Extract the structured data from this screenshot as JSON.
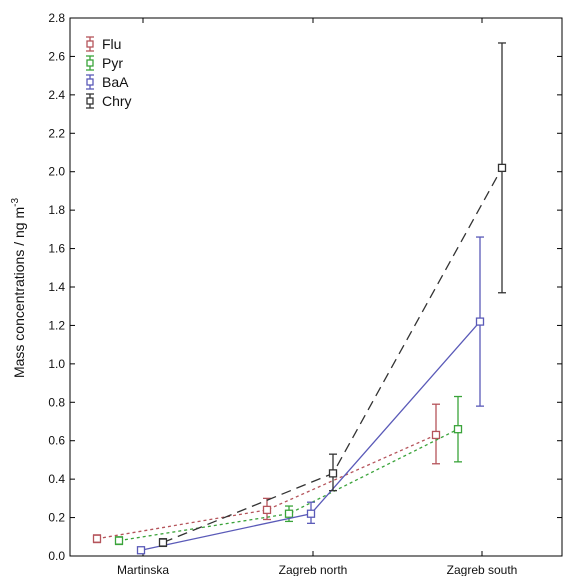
{
  "chart_data": {
    "type": "line",
    "title": "",
    "xlabel": "",
    "ylabel_main": "Mass concentrations / ng m",
    "ylabel_sup": "-3",
    "categories": [
      "Martinska",
      "Zagreb north",
      "Zagreb south"
    ],
    "ylim": [
      0.0,
      2.8
    ],
    "yticks": [
      "0.0",
      "0.2",
      "0.4",
      "0.6",
      "0.8",
      "1.0",
      "1.2",
      "1.4",
      "1.6",
      "1.8",
      "2.0",
      "2.2",
      "2.4",
      "2.6",
      "2.8"
    ],
    "legend_position": "top-left",
    "grid": false,
    "series": [
      {
        "name": "Flu",
        "color": "#b5545b",
        "dash": "3,3",
        "values": [
          0.09,
          0.24,
          0.63
        ],
        "err_low": [
          0.07,
          0.19,
          0.48
        ],
        "err_high": [
          0.11,
          0.3,
          0.79
        ]
      },
      {
        "name": "Pyr",
        "color": "#3aa33a",
        "dash": "3,3",
        "values": [
          0.08,
          0.22,
          0.66
        ],
        "err_low": [
          0.06,
          0.18,
          0.49
        ],
        "err_high": [
          0.1,
          0.26,
          0.83
        ]
      },
      {
        "name": "BaA",
        "color": "#5a5ab8",
        "dash": "",
        "values": [
          0.03,
          0.22,
          1.22
        ],
        "err_low": [
          0.02,
          0.17,
          0.78
        ],
        "err_high": [
          0.04,
          0.28,
          1.66
        ]
      },
      {
        "name": "Chry",
        "color": "#333333",
        "dash": "10,6",
        "values": [
          0.07,
          0.43,
          2.02
        ],
        "err_low": [
          0.05,
          0.34,
          1.37
        ],
        "err_high": [
          0.09,
          0.53,
          2.67
        ]
      }
    ]
  }
}
